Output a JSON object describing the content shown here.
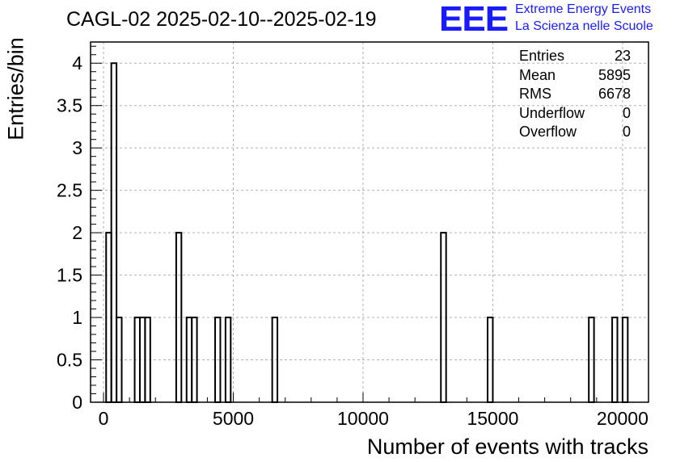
{
  "chart_data": {
    "type": "histogram",
    "title": "CAGL-02 2025-02-10--2025-02-19",
    "xlabel": "Number of events with tracks",
    "ylabel": "Entries/bin",
    "xlim": [
      -500,
      21000
    ],
    "ylim": [
      0,
      4.25
    ],
    "xticks": [
      0,
      5000,
      10000,
      15000,
      20000
    ],
    "xtick_labels": [
      "0",
      "5000",
      "10000",
      "15000",
      "20000"
    ],
    "yticks": [
      0,
      0.5,
      1,
      1.5,
      2,
      2.5,
      3,
      3.5,
      4
    ],
    "ytick_labels": [
      "0",
      "0.5",
      "1",
      "1.5",
      "2",
      "2.5",
      "3",
      "3.5",
      "4"
    ],
    "grid": true,
    "bin_width": 200,
    "bins": [
      {
        "x0": 100,
        "x1": 300,
        "value": 2
      },
      {
        "x0": 300,
        "x1": 500,
        "value": 4
      },
      {
        "x0": 500,
        "x1": 700,
        "value": 1
      },
      {
        "x0": 1200,
        "x1": 1400,
        "value": 1
      },
      {
        "x0": 1400,
        "x1": 1600,
        "value": 1
      },
      {
        "x0": 1600,
        "x1": 1800,
        "value": 1
      },
      {
        "x0": 2800,
        "x1": 3000,
        "value": 2
      },
      {
        "x0": 3200,
        "x1": 3400,
        "value": 1
      },
      {
        "x0": 3400,
        "x1": 3600,
        "value": 1
      },
      {
        "x0": 4300,
        "x1": 4500,
        "value": 1
      },
      {
        "x0": 4700,
        "x1": 4900,
        "value": 1
      },
      {
        "x0": 6500,
        "x1": 6700,
        "value": 1
      },
      {
        "x0": 13000,
        "x1": 13200,
        "value": 2
      },
      {
        "x0": 14800,
        "x1": 15000,
        "value": 1
      },
      {
        "x0": 18700,
        "x1": 18900,
        "value": 1
      },
      {
        "x0": 19600,
        "x1": 19800,
        "value": 1
      },
      {
        "x0": 20000,
        "x1": 20200,
        "value": 1
      }
    ],
    "stats": [
      {
        "label": "Entries",
        "value": "23"
      },
      {
        "label": "Mean",
        "value": "5895"
      },
      {
        "label": "RMS",
        "value": "6678"
      },
      {
        "label": "Underflow",
        "value": "0"
      },
      {
        "label": "Overflow",
        "value": "0"
      }
    ]
  },
  "logo": {
    "mark": "EEE",
    "line1": "Extreme Energy Events",
    "line2": "La Scienza nelle Scuole"
  },
  "colors": {
    "line": "#000000",
    "grid": "#b0b0b0",
    "logo": "#1a1aff",
    "background": "#ffffff"
  }
}
